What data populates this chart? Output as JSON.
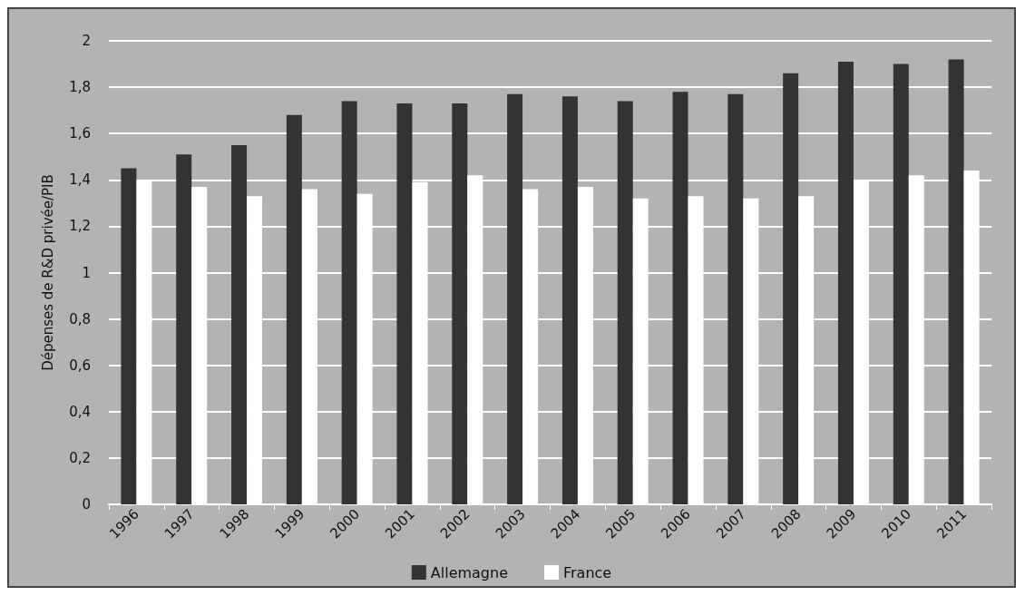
{
  "chart_data": {
    "type": "bar",
    "ylabel": "Dépenses de R&D privée/PIB",
    "categories": [
      "1996",
      "1997",
      "1998",
      "1999",
      "2000",
      "2001",
      "2002",
      "2003",
      "2004",
      "2005",
      "2006",
      "2007",
      "2008",
      "2009",
      "2010",
      "2011"
    ],
    "series": [
      {
        "name": "Allemagne",
        "color": "#333333",
        "values": [
          1.45,
          1.51,
          1.55,
          1.68,
          1.74,
          1.73,
          1.73,
          1.77,
          1.76,
          1.74,
          1.78,
          1.77,
          1.86,
          1.91,
          1.9,
          1.92
        ]
      },
      {
        "name": "France",
        "color": "#ffffff",
        "values": [
          1.4,
          1.37,
          1.33,
          1.36,
          1.34,
          1.39,
          1.42,
          1.36,
          1.37,
          1.32,
          1.33,
          1.32,
          1.33,
          1.4,
          1.42,
          1.44
        ]
      }
    ],
    "ylim": [
      0,
      2
    ],
    "yticks": [
      0,
      {
        "value": 0.2,
        "label": "0,2"
      },
      {
        "value": 0.4,
        "label": "0,4"
      },
      {
        "value": 0.6,
        "label": "0,6"
      },
      {
        "value": 0.8,
        "label": "0,8"
      },
      1,
      {
        "value": 1.2,
        "label": "1,2"
      },
      {
        "value": 1.4,
        "label": "1,4"
      },
      {
        "value": 1.6,
        "label": "1,6"
      },
      {
        "value": 1.8,
        "label": "1,8"
      },
      2
    ],
    "grid": "y",
    "legend": "bottom"
  }
}
